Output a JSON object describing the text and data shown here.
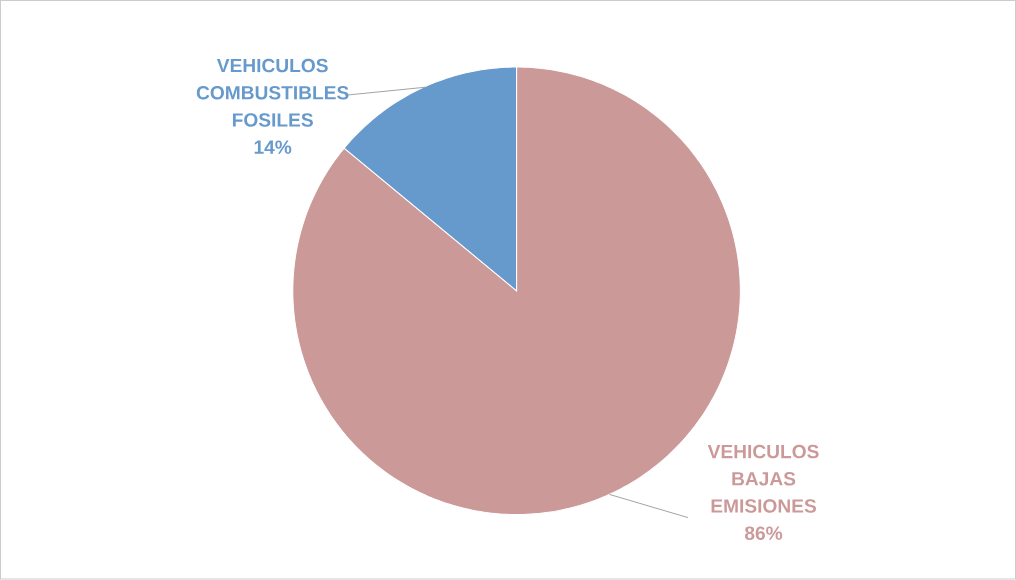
{
  "chart_data": {
    "type": "pie",
    "categories": [
      "VEHICULOS BAJAS EMISIONES",
      "VEHICULOS COMBUSTIBLES FOSILES"
    ],
    "values": [
      86,
      14
    ],
    "colors": [
      "#cc9999",
      "#6699cc"
    ],
    "value_labels": [
      "86%",
      "14%"
    ]
  }
}
